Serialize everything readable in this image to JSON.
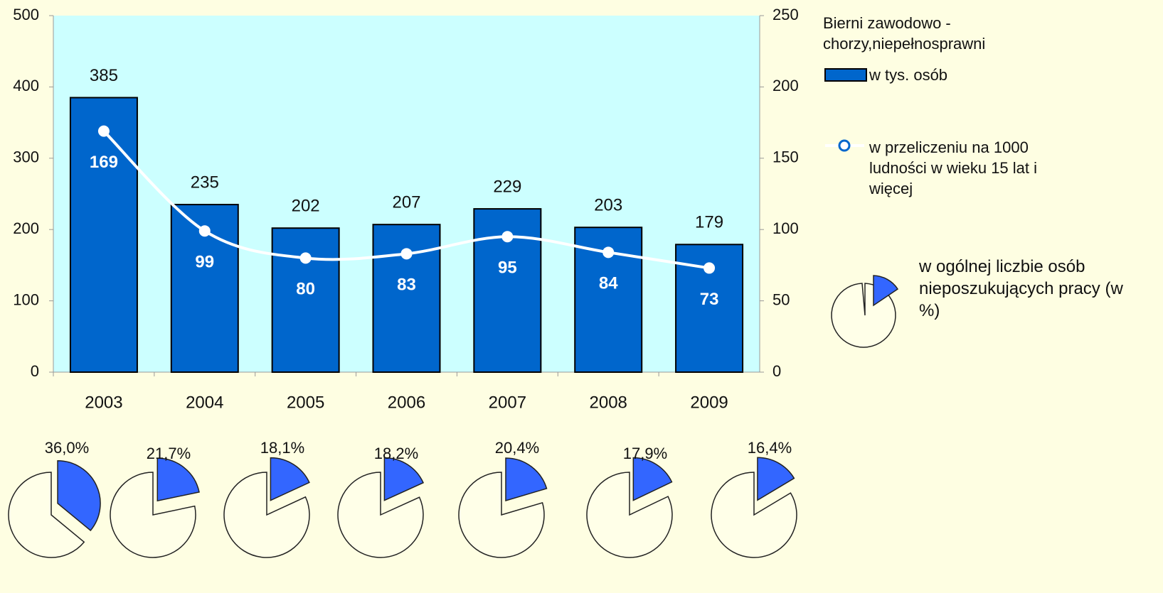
{
  "chart_data": [
    {
      "type": "bar",
      "title": "Bierni zawodowo - chorzy,niepełnosprawni",
      "categories": [
        "2003",
        "2004",
        "2005",
        "2006",
        "2007",
        "2008",
        "2009"
      ],
      "series": [
        {
          "name": "w tys. osób",
          "color": "#0066cc",
          "values": [
            385,
            235,
            202,
            207,
            229,
            203,
            179
          ]
        },
        {
          "name": "w przeliczeniu na 1000 ludności w wieku 15 lat i więcej",
          "type": "line",
          "axis": "y2",
          "color": "#ffffff",
          "values": [
            169,
            99,
            80,
            83,
            95,
            84,
            73
          ]
        }
      ],
      "ylim": [
        0,
        500
      ],
      "yticks": [
        0,
        100,
        200,
        300,
        400,
        500
      ],
      "y2lim": [
        0,
        250
      ],
      "y2ticks": [
        0,
        50,
        100,
        150,
        200,
        250
      ]
    },
    {
      "type": "pie",
      "series": [
        {
          "name": "w ogólnej liczbie osób nieposzukujących pracy (w %)",
          "color": "#3366ff",
          "values": [
            36.0,
            21.7,
            18.1,
            18.2,
            20.4,
            17.9,
            16.4
          ],
          "value_labels": [
            "36,0%",
            "21,7%",
            "18,1%",
            "18,2%",
            "20,4%",
            "17,9%",
            "16,4%"
          ]
        }
      ]
    }
  ]
}
